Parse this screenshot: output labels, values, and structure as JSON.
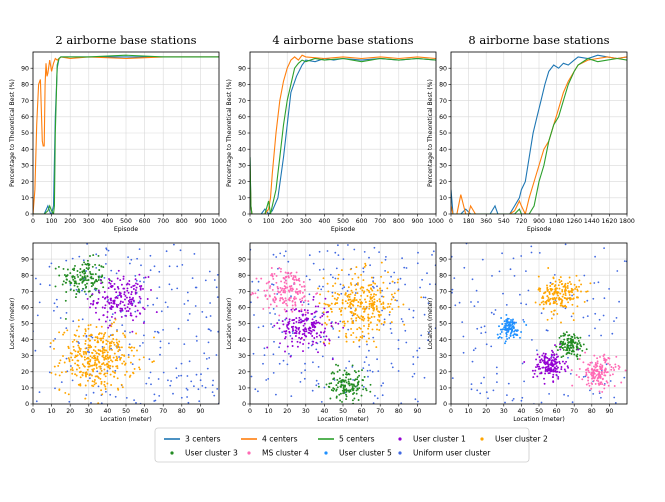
{
  "figure": {
    "colors": {
      "c3": "#1f77b4",
      "c4": "#ff7f0e",
      "c5": "#2ca02c",
      "u1": "#9400d3",
      "u2": "#ffa500",
      "u3": "#228b22",
      "u4": "#ff69b4",
      "u5": "#1e90ff",
      "uniform": "#4169e1"
    },
    "legend": [
      {
        "label": "3 centers",
        "kind": "line",
        "color": "#1f77b4"
      },
      {
        "label": "4 centers",
        "kind": "line",
        "color": "#ff7f0e"
      },
      {
        "label": "5 centers",
        "kind": "line",
        "color": "#2ca02c"
      },
      {
        "label": "User cluster 1",
        "kind": "dot",
        "color": "#9400d3"
      },
      {
        "label": "User cluster 2",
        "kind": "dot",
        "color": "#ffa500"
      },
      {
        "label": "User cluster 3",
        "kind": "dot",
        "color": "#228b22"
      },
      {
        "label": "MS cluster 4",
        "kind": "dot",
        "color": "#ff69b4"
      },
      {
        "label": "User cluster 5",
        "kind": "dot",
        "color": "#1e90ff"
      },
      {
        "label": "Uniform user cluster",
        "kind": "dot",
        "color": "#4169e1"
      }
    ]
  },
  "chart_data": [
    {
      "type": "line",
      "title": "2 airborne base stations",
      "xlabel": "Episode",
      "ylabel": "Percentage to Theoretical Best (%)",
      "xlim": [
        0,
        1000
      ],
      "ylim": [
        0,
        100
      ],
      "grid": true,
      "xticks": [
        "0",
        "100",
        "200",
        "300",
        "400",
        "500",
        "600",
        "700",
        "800",
        "900",
        "1000"
      ],
      "yticks": [
        "0",
        "10",
        "20",
        "30",
        "40",
        "50",
        "60",
        "70",
        "80",
        "90"
      ],
      "series": [
        {
          "name": "3 centers",
          "color": "#1f77b4",
          "x": [
            0,
            40,
            60,
            80,
            95,
            100,
            110,
            120,
            130,
            140,
            150,
            200,
            300,
            500,
            700,
            1000
          ],
          "y": [
            0,
            0,
            0,
            5,
            0,
            0,
            5,
            60,
            90,
            96,
            97,
            97,
            97,
            97,
            97,
            97
          ]
        },
        {
          "name": "4 centers",
          "color": "#ff7f0e",
          "x": [
            0,
            10,
            20,
            30,
            40,
            50,
            55,
            60,
            65,
            70,
            75,
            80,
            90,
            100,
            110,
            120,
            130,
            150,
            200,
            300,
            500,
            700,
            1000
          ],
          "y": [
            0,
            15,
            55,
            80,
            83,
            45,
            42,
            42,
            80,
            93,
            85,
            87,
            95,
            88,
            93,
            96,
            95,
            97,
            96,
            97,
            96,
            97,
            97
          ]
        },
        {
          "name": "5 centers",
          "color": "#2ca02c",
          "x": [
            0,
            60,
            80,
            90,
            100,
            110,
            115,
            120,
            130,
            140,
            150,
            200,
            300,
            500,
            700,
            1000
          ],
          "y": [
            0,
            0,
            2,
            5,
            2,
            0,
            5,
            50,
            92,
            96,
            97,
            97,
            97,
            98,
            97,
            97
          ]
        }
      ]
    },
    {
      "type": "line",
      "title": "4 airborne base stations",
      "xlabel": "Episode",
      "ylabel": "Percentage to Theoretical Best (%)",
      "xlim": [
        0,
        1000
      ],
      "ylim": [
        0,
        100
      ],
      "grid": true,
      "xticks": [
        "0",
        "100",
        "200",
        "300",
        "400",
        "500",
        "600",
        "700",
        "800",
        "900",
        "1000"
      ],
      "yticks": [
        "0",
        "10",
        "20",
        "30",
        "40",
        "50",
        "60",
        "70",
        "80",
        "90"
      ],
      "series": [
        {
          "name": "3 centers",
          "color": "#1f77b4",
          "x": [
            0,
            5,
            10,
            60,
            80,
            100,
            120,
            150,
            180,
            200,
            220,
            250,
            280,
            300,
            350,
            400,
            450,
            500,
            600,
            700,
            800,
            900,
            1000
          ],
          "y": [
            35,
            5,
            0,
            0,
            3,
            0,
            2,
            10,
            35,
            55,
            75,
            85,
            92,
            95,
            94,
            96,
            95,
            96,
            95,
            96,
            95,
            96,
            95
          ]
        },
        {
          "name": "4 centers",
          "color": "#ff7f0e",
          "x": [
            0,
            5,
            10,
            60,
            80,
            100,
            110,
            120,
            140,
            160,
            180,
            200,
            220,
            240,
            260,
            280,
            300,
            400,
            500,
            600,
            700,
            800,
            900,
            1000
          ],
          "y": [
            30,
            5,
            0,
            0,
            0,
            3,
            10,
            25,
            50,
            70,
            82,
            90,
            95,
            97,
            95,
            98,
            97,
            96,
            97,
            96,
            97,
            96,
            97,
            96
          ]
        },
        {
          "name": "5 centers",
          "color": "#2ca02c",
          "x": [
            0,
            5,
            10,
            80,
            100,
            110,
            120,
            140,
            160,
            180,
            200,
            220,
            240,
            260,
            280,
            300,
            350,
            400,
            500,
            600,
            700,
            800,
            900,
            1000
          ],
          "y": [
            35,
            5,
            0,
            0,
            8,
            0,
            5,
            15,
            35,
            55,
            70,
            80,
            90,
            93,
            95,
            94,
            96,
            95,
            96,
            94,
            96,
            95,
            96,
            95
          ]
        }
      ]
    },
    {
      "type": "line",
      "title": "8 airborne base stations",
      "xlabel": "Episode",
      "ylabel": "Percentage to Theoretical Best (%)",
      "xlim": [
        0,
        1800
      ],
      "ylim": [
        0,
        100
      ],
      "grid": true,
      "xticks": [
        "0",
        "180",
        "360",
        "540",
        "720",
        "900",
        "1080",
        "1260",
        "1440",
        "1620",
        "1800"
      ],
      "yticks": [
        "0",
        "10",
        "20",
        "30",
        "40",
        "50",
        "60",
        "70",
        "80",
        "90"
      ],
      "series": [
        {
          "name": "3 centers",
          "color": "#1f77b4",
          "x": [
            0,
            20,
            40,
            80,
            100,
            150,
            200,
            300,
            400,
            450,
            480,
            500,
            550,
            600,
            650,
            700,
            720,
            760,
            800,
            840,
            880,
            920,
            960,
            1000,
            1050,
            1100,
            1150,
            1200,
            1260,
            1300,
            1400,
            1500,
            1600,
            1700,
            1800
          ],
          "y": [
            15,
            0,
            0,
            0,
            0,
            3,
            0,
            0,
            0,
            5,
            0,
            0,
            0,
            0,
            5,
            10,
            15,
            20,
            35,
            50,
            60,
            70,
            80,
            88,
            92,
            90,
            93,
            92,
            95,
            97,
            96,
            98,
            97,
            96,
            97
          ]
        },
        {
          "name": "4 centers",
          "color": "#ff7f0e",
          "x": [
            0,
            20,
            40,
            60,
            100,
            150,
            180,
            200,
            250,
            300,
            400,
            500,
            600,
            650,
            700,
            720,
            760,
            800,
            850,
            900,
            950,
            1000,
            1050,
            1100,
            1150,
            1200,
            1260,
            1300,
            1400,
            1500,
            1600,
            1700,
            1800
          ],
          "y": [
            5,
            0,
            0,
            0,
            12,
            0,
            0,
            5,
            0,
            0,
            0,
            0,
            0,
            2,
            8,
            5,
            0,
            10,
            20,
            30,
            40,
            45,
            55,
            65,
            75,
            82,
            88,
            92,
            95,
            96,
            97,
            96,
            97
          ]
        },
        {
          "name": "5 centers",
          "color": "#2ca02c",
          "x": [
            0,
            20,
            40,
            100,
            200,
            300,
            400,
            500,
            600,
            650,
            700,
            720,
            760,
            800,
            850,
            900,
            950,
            1000,
            1050,
            1100,
            1150,
            1200,
            1260,
            1300,
            1400,
            1500,
            1600,
            1700,
            1800
          ],
          "y": [
            0,
            0,
            0,
            0,
            0,
            0,
            0,
            0,
            0,
            0,
            3,
            0,
            0,
            0,
            5,
            20,
            30,
            45,
            55,
            60,
            70,
            80,
            88,
            92,
            96,
            94,
            95,
            96,
            95
          ]
        }
      ]
    },
    {
      "type": "scatter",
      "xlabel": "Location (meter)",
      "ylabel": "Location (meter)",
      "xlim": [
        0,
        100
      ],
      "ylim": [
        0,
        100
      ],
      "grid": true,
      "xticks": [
        "0",
        "10",
        "20",
        "30",
        "40",
        "50",
        "60",
        "70",
        "80",
        "90"
      ],
      "yticks": [
        "0",
        "10",
        "20",
        "30",
        "40",
        "50",
        "60",
        "70",
        "80",
        "90"
      ],
      "uniform": {
        "name": "Uniform user cluster",
        "color": "#4169e1",
        "count": 240
      },
      "clusters": [
        {
          "name": "User cluster 3",
          "color": "#228b22",
          "center": [
            27,
            78
          ],
          "spread": 6,
          "count": 150
        },
        {
          "name": "User cluster 1",
          "color": "#9400d3",
          "center": [
            47,
            65
          ],
          "spread": 7,
          "count": 180
        },
        {
          "name": "User cluster 2",
          "color": "#ffa500",
          "center": [
            35,
            28
          ],
          "spread": 10,
          "count": 380
        }
      ]
    },
    {
      "type": "scatter",
      "xlabel": "Location (meter)",
      "ylabel": "Location (meter)",
      "xlim": [
        0,
        100
      ],
      "ylim": [
        0,
        100
      ],
      "grid": true,
      "xticks": [
        "0",
        "10",
        "20",
        "30",
        "40",
        "50",
        "60",
        "70",
        "80",
        "90"
      ],
      "yticks": [
        "0",
        "10",
        "20",
        "30",
        "40",
        "50",
        "60",
        "70",
        "80",
        "90"
      ],
      "uniform": {
        "name": "Uniform user cluster",
        "color": "#4169e1",
        "count": 240
      },
      "clusters": [
        {
          "name": "MS cluster 4",
          "color": "#ff69b4",
          "center": [
            20,
            70
          ],
          "spread": 7,
          "count": 170
        },
        {
          "name": "User cluster 2",
          "color": "#ffa500",
          "center": [
            60,
            62
          ],
          "spread": 10,
          "count": 300
        },
        {
          "name": "User cluster 1",
          "color": "#9400d3",
          "center": [
            30,
            48
          ],
          "spread": 7,
          "count": 190
        },
        {
          "name": "User cluster 3",
          "color": "#228b22",
          "center": [
            52,
            12
          ],
          "spread": 5,
          "count": 140
        }
      ]
    },
    {
      "type": "scatter",
      "xlabel": "Location (meter)",
      "ylabel": "Location (meter)",
      "xlim": [
        0,
        100
      ],
      "ylim": [
        0,
        100
      ],
      "grid": true,
      "xticks": [
        "0",
        "10",
        "20",
        "30",
        "40",
        "50",
        "60",
        "70",
        "80",
        "90"
      ],
      "yticks": [
        "0",
        "10",
        "20",
        "30",
        "40",
        "50",
        "60",
        "70",
        "80",
        "90"
      ],
      "uniform": {
        "name": "Uniform user cluster",
        "color": "#4169e1",
        "count": 140
      },
      "clusters": [
        {
          "name": "User cluster 2",
          "color": "#ffa500",
          "center": [
            62,
            68
          ],
          "spread": 6,
          "count": 190
        },
        {
          "name": "User cluster 5",
          "color": "#1e90ff",
          "center": [
            33,
            47
          ],
          "spread": 3.5,
          "count": 110
        },
        {
          "name": "User cluster 3",
          "color": "#228b22",
          "center": [
            68,
            37
          ],
          "spread": 3.5,
          "count": 120
        },
        {
          "name": "User cluster 1",
          "color": "#9400d3",
          "center": [
            56,
            24
          ],
          "spread": 4.5,
          "count": 160
        },
        {
          "name": "MS cluster 4",
          "color": "#ff69b4",
          "center": [
            84,
            20
          ],
          "spread": 5,
          "count": 160
        }
      ]
    }
  ]
}
